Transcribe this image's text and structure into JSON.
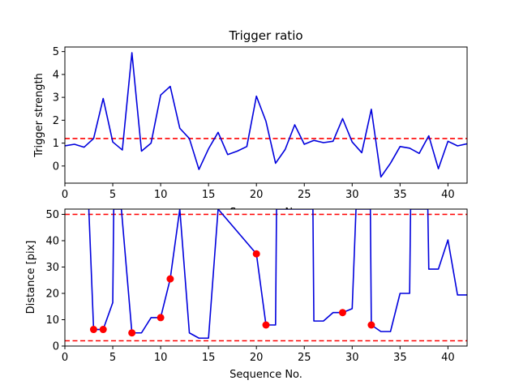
{
  "chart_data": [
    {
      "type": "line",
      "title": "Trigger ratio",
      "xlabel": "Sequence No.",
      "ylabel": "Trigger strength",
      "xlim": [
        0,
        42
      ],
      "ylim": [
        -0.75,
        5.2
      ],
      "xticks": [
        0,
        5,
        10,
        15,
        20,
        25,
        30,
        35,
        40
      ],
      "yticks": [
        0,
        1,
        2,
        3,
        4,
        5
      ],
      "threshold": 1.2,
      "series": [
        {
          "color": "#0000dd",
          "x": [
            0,
            1,
            2,
            3,
            4,
            5,
            6,
            7,
            8,
            9,
            10,
            11,
            12,
            13,
            14,
            15,
            16,
            17,
            18,
            19,
            20,
            21,
            22,
            23,
            24,
            25,
            26,
            27,
            28,
            29,
            30,
            31,
            32,
            33,
            34,
            35,
            36,
            37,
            38,
            39,
            40,
            41,
            42
          ],
          "y": [
            0.88,
            0.95,
            0.82,
            1.2,
            2.95,
            1.05,
            0.7,
            4.95,
            0.65,
            1.0,
            3.1,
            3.48,
            1.65,
            1.2,
            -0.15,
            0.75,
            1.47,
            0.5,
            0.65,
            0.85,
            3.05,
            1.95,
            0.12,
            0.72,
            1.8,
            0.95,
            1.12,
            1.02,
            1.08,
            2.07,
            1.05,
            0.58,
            2.48,
            -0.48,
            0.12,
            0.85,
            0.78,
            0.55,
            1.32,
            -0.12,
            1.08,
            0.88,
            0.97
          ]
        }
      ],
      "threshold_color": "#ff0000"
    },
    {
      "type": "line",
      "title": "",
      "xlabel": "Sequence No.",
      "ylabel": "Distance [pix]",
      "xlim": [
        0,
        42
      ],
      "ylim": [
        0,
        52
      ],
      "xticks": [
        0,
        5,
        10,
        15,
        20,
        25,
        30,
        35,
        40
      ],
      "yticks": [
        0,
        10,
        20,
        30,
        40,
        50
      ],
      "thresholds": [
        50,
        2
      ],
      "series": [
        {
          "color": "#0000dd",
          "x": [
            2.5,
            3,
            4,
            5,
            5.1,
            5.9,
            7,
            8,
            9,
            10,
            11,
            12,
            13,
            14,
            15,
            16,
            20,
            21,
            22,
            22.1,
            25.9,
            26,
            27,
            28,
            29,
            30,
            30.4,
            30.9,
            31.9,
            32,
            33,
            34,
            35,
            36,
            36.1,
            37.9,
            38,
            39,
            40,
            41,
            42
          ],
          "y": [
            52,
            6.3,
            6.3,
            16.5,
            52,
            52,
            5,
            5,
            10.8,
            10.8,
            25.5,
            52,
            5,
            3,
            3,
            52,
            35,
            8,
            8,
            52,
            52,
            9.5,
            9.5,
            12.7,
            12.7,
            14.2,
            52,
            52,
            52,
            8,
            5.5,
            5.5,
            20,
            20,
            52,
            52,
            29.2,
            29.2,
            40.3,
            19.4,
            19.4
          ]
        }
      ],
      "markers": {
        "color": "#ff0000",
        "x": [
          3,
          4,
          7,
          10,
          11,
          20,
          21,
          29,
          32
        ],
        "y": [
          6.3,
          6.3,
          5,
          10.8,
          25.5,
          35,
          8,
          12.7,
          8
        ]
      },
      "threshold_color": "#ff0000"
    }
  ]
}
